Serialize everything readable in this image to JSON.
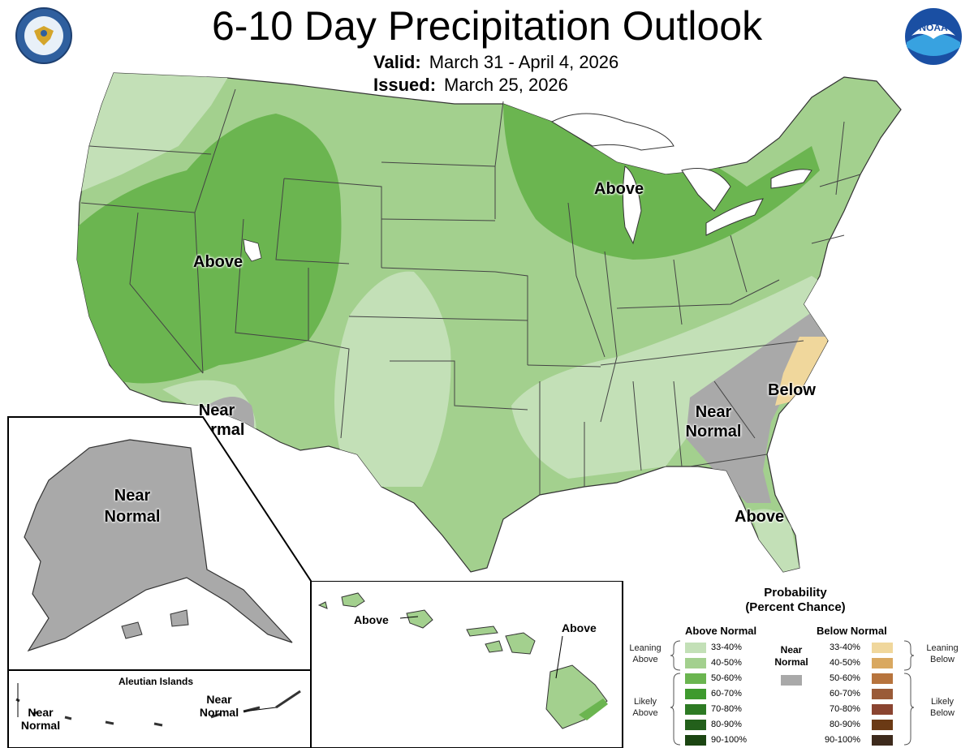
{
  "header": {
    "title": "6-10 Day Precipitation Outlook",
    "valid_label": "Valid:",
    "valid_value": "March 31 - April 4, 2026",
    "issued_label": "Issued:",
    "issued_value": "March 25, 2026"
  },
  "logos": {
    "commerce_seal": "department-of-commerce-seal-icon",
    "noaa_logo_text": "NOAA"
  },
  "colors": {
    "above_33_40": "#c3e0b7",
    "above_40_50": "#a3d08e",
    "above_50_60": "#6bb550",
    "above_60_70": "#3e9a2e",
    "above_70_80": "#2d7a23",
    "above_80_90": "#23601b",
    "above_90_100": "#1b4512",
    "below_33_40": "#f0d79c",
    "below_40_50": "#d9a860",
    "below_50_60": "#b7743d",
    "below_60_70": "#9a5b38",
    "below_70_80": "#8a4430",
    "below_80_90": "#6b3a15",
    "below_90_100": "#3d2a1c",
    "near_normal": "#a9a9a9",
    "lakes": "#ffffff"
  },
  "map_labels": {
    "west_above": "Above",
    "midwest_above": "Above",
    "southwest_near_normal": "Near Normal",
    "southeast_near_normal": "Near Normal",
    "carolina_below": "Below",
    "florida_above": "Above",
    "alaska_near_normal": "Near Normal",
    "aleutian_title": "Aleutian Islands",
    "aleutian_west_near_normal": "Near Normal",
    "aleutian_east_near_normal": "Near Normal",
    "hawaii_oahu_above": "Above",
    "hawaii_big_island_above": "Above"
  },
  "legend": {
    "title_line1": "Probability",
    "title_line2": "(Percent Chance)",
    "above_heading": "Above Normal",
    "below_heading": "Below Normal",
    "near_normal_line1": "Near",
    "near_normal_line2": "Normal",
    "leaning_above_1": "Leaning",
    "leaning_above_2": "Above",
    "likely_above_1": "Likely",
    "likely_above_2": "Above",
    "leaning_below_1": "Leaning",
    "leaning_below_2": "Below",
    "likely_below_1": "Likely",
    "likely_below_2": "Below",
    "categories": [
      "33-40%",
      "40-50%",
      "50-60%",
      "60-70%",
      "70-80%",
      "80-90%",
      "90-100%"
    ]
  }
}
